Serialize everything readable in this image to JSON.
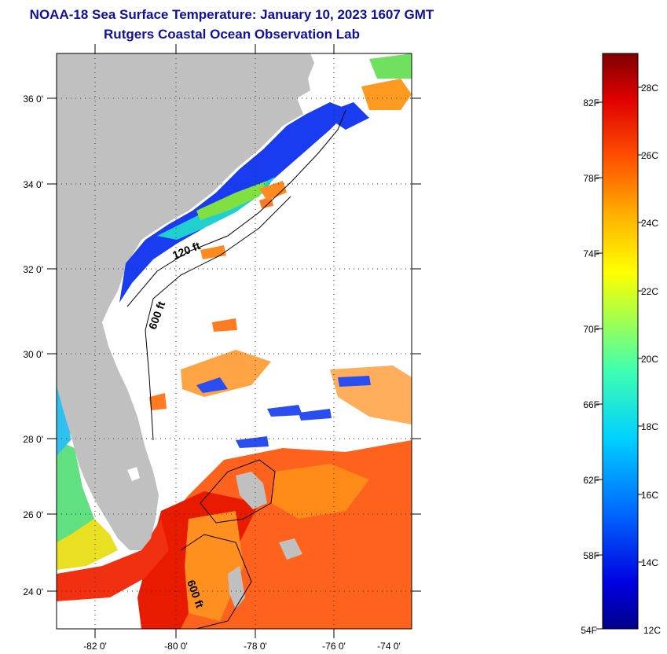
{
  "title_line1": "NOAA-18 Sea Surface Temperature:  January 10, 2023 1607 GMT",
  "title_line2": "Rutgers Coastal Ocean Observation Lab",
  "map": {
    "lat_labels": [
      "36 0'",
      "34 0'",
      "32 0'",
      "30 0'",
      "28 0'",
      "26 0'",
      "24 0'"
    ],
    "lon_labels": [
      "-82 0'",
      "-80 0'",
      "-78 0'",
      "-76 0'",
      "-74 0'"
    ],
    "contour_labels": [
      "120 ft",
      "600 ft",
      "600 ft"
    ],
    "colors": {
      "land": "#c0c0c0",
      "cloud": "#ffffff",
      "frame": "#000000"
    }
  },
  "colorbar": {
    "fahrenheit_labels": [
      "82F",
      "78F",
      "74F",
      "70F",
      "66F",
      "62F",
      "58F",
      "54F"
    ],
    "celsius_labels": [
      "28C",
      "26C",
      "24C",
      "22C",
      "20C",
      "18C",
      "16C",
      "14C",
      "12C"
    ],
    "range_c": [
      12,
      29
    ]
  }
}
